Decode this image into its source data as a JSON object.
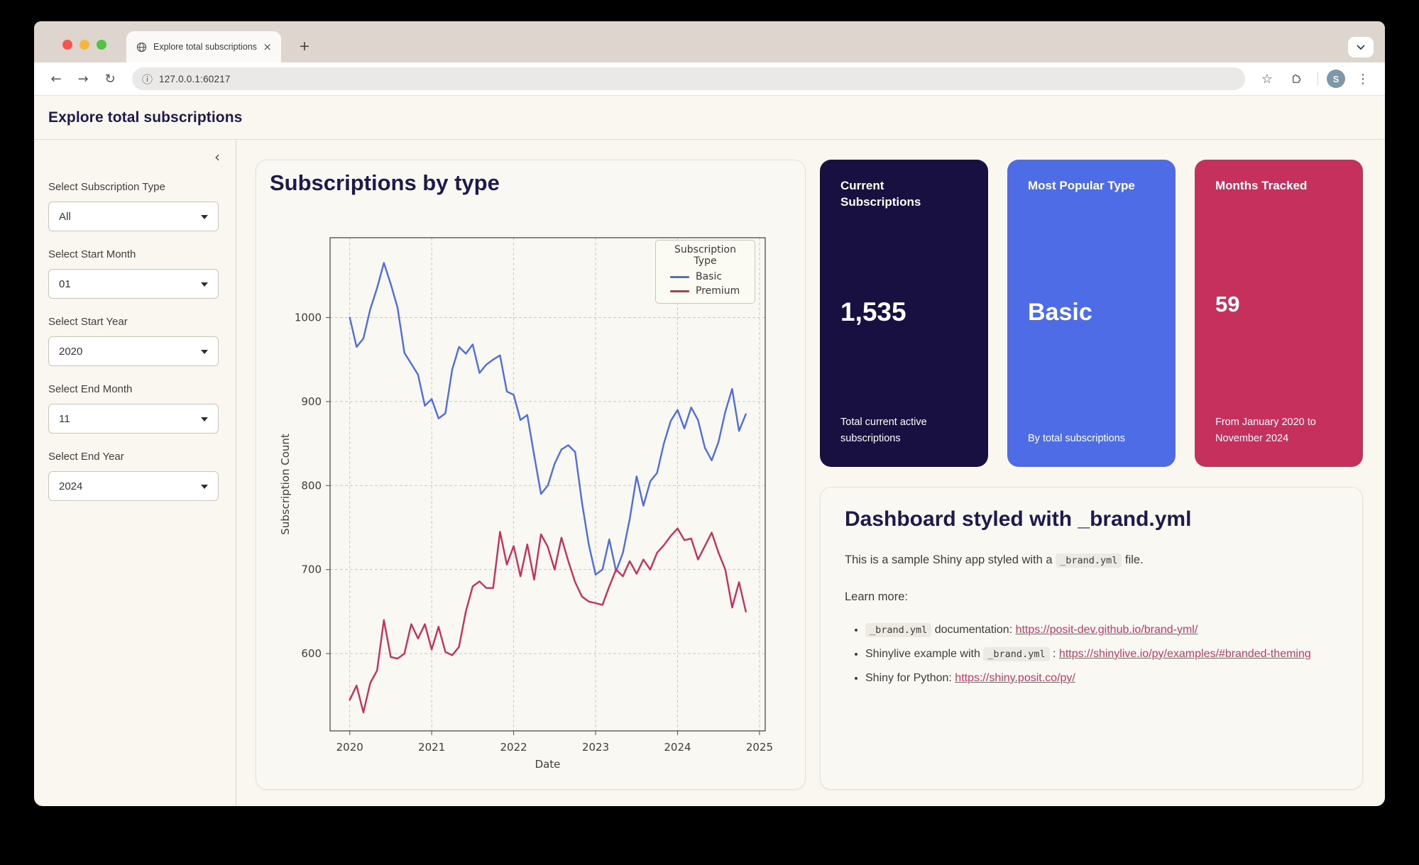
{
  "theme": {
    "navy": "#1e1a4e",
    "blue": "#4d6ce6",
    "crimson": "#c5305c",
    "page_bg": "#f9f7f0"
  },
  "icons": {
    "back": "←",
    "forward": "→",
    "reload": "↻",
    "site_info": "ⓘ",
    "bookmark": "☆",
    "menu": "⋮",
    "new_tab": "+",
    "close_tab": "×",
    "collapse_sidebar": "‹"
  },
  "browser": {
    "tab_title": "Explore total subscriptions",
    "url": "127.0.0.1:60217",
    "avatar_initial": "S"
  },
  "header": {
    "title": "Explore total subscriptions"
  },
  "sidebar": {
    "controls": [
      {
        "label": "Select Subscription Type",
        "value": "All"
      },
      {
        "label": "Select Start Month",
        "value": "01"
      },
      {
        "label": "Select Start Year",
        "value": "2020"
      },
      {
        "label": "Select End Month",
        "value": "11"
      },
      {
        "label": "Select End Year",
        "value": "2024"
      }
    ]
  },
  "chart_card": {
    "title": "Subscriptions by type"
  },
  "chart_data": {
    "type": "line",
    "title": "Subscriptions by type",
    "xlabel": "Date",
    "ylabel": "Subscription Count",
    "legend_title": "Subscription Type",
    "legend_position": "top-right",
    "grid": true,
    "x_ticks": [
      2020,
      2021,
      2022,
      2023,
      2024,
      2025
    ],
    "y_ticks": [
      600,
      700,
      800,
      900,
      1000
    ],
    "x_range": [
      2019.76,
      2025.07
    ],
    "y_range": [
      508,
      1095
    ],
    "x_start": {
      "year": 2020,
      "month": 1
    },
    "x_step_months": 1,
    "series": [
      {
        "name": "Basic",
        "color": "#4d6ce6",
        "values": [
          1000,
          965,
          975,
          1010,
          1035,
          1065,
          1040,
          1012,
          958,
          945,
          932,
          895,
          903,
          880,
          886,
          938,
          965,
          957,
          968,
          934,
          944,
          950,
          955,
          912,
          908,
          878,
          884,
          836,
          790,
          800,
          826,
          843,
          848,
          840,
          780,
          730,
          694,
          700,
          736,
          698,
          720,
          760,
          811,
          776,
          805,
          815,
          850,
          877,
          890,
          868,
          893,
          878,
          845,
          830,
          852,
          888,
          915,
          865,
          885
        ]
      },
      {
        "name": "Premium",
        "color": "#c5305c",
        "values": [
          545,
          562,
          530,
          565,
          580,
          640,
          596,
          594,
          600,
          635,
          618,
          635,
          605,
          632,
          602,
          598,
          608,
          650,
          680,
          686,
          678,
          678,
          745,
          706,
          728,
          692,
          730,
          688,
          742,
          727,
          700,
          738,
          710,
          685,
          668,
          662,
          660,
          658,
          680,
          700,
          692,
          710,
          695,
          712,
          700,
          720,
          729,
          740,
          749,
          735,
          737,
          712,
          728,
          744,
          720,
          700,
          655,
          685,
          650
        ]
      }
    ]
  },
  "value_boxes": [
    {
      "title": "Current Subscriptions",
      "value": "1,535",
      "caption": "Total current active subscriptions",
      "bg": "#171040"
    },
    {
      "title": "Most Popular Type",
      "value": "Basic",
      "caption": "By total subscriptions",
      "bg": "#4d6ce6"
    },
    {
      "title": "Months Tracked",
      "value": "59",
      "caption": "From January 2020 to November 2024",
      "bg": "#c5305c"
    }
  ],
  "info_card": {
    "title": "Dashboard styled with _brand.yml",
    "intro": [
      {
        "type": "text",
        "value": "This is a sample Shiny app styled with a "
      },
      {
        "type": "code",
        "value": "_brand.yml"
      },
      {
        "type": "text",
        "value": " file."
      }
    ],
    "learn_more": "Learn more:",
    "bullets": [
      [
        {
          "type": "code",
          "value": "_brand.yml"
        },
        {
          "type": "text",
          "value": " documentation: "
        },
        {
          "type": "link",
          "value": "https://posit-dev.github.io/brand-yml/"
        }
      ],
      [
        {
          "type": "text",
          "value": "Shinylive example with "
        },
        {
          "type": "code",
          "value": "_brand.yml"
        },
        {
          "type": "text",
          "value": " : "
        },
        {
          "type": "link",
          "value": "https://shinylive.io/py/examples/#branded-theming"
        }
      ],
      [
        {
          "type": "text",
          "value": "Shiny for Python: "
        },
        {
          "type": "link",
          "value": "https://shiny.posit.co/py/"
        }
      ]
    ]
  }
}
